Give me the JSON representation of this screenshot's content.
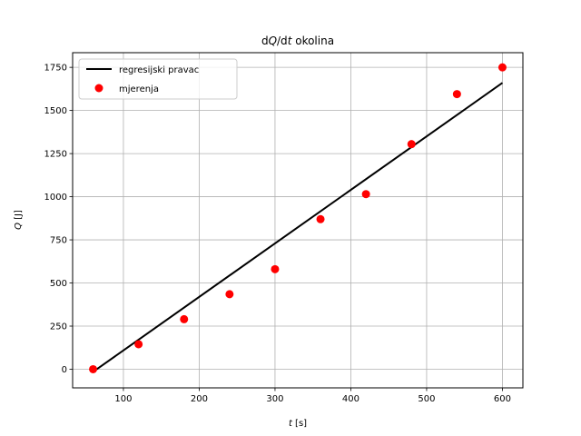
{
  "chart_data": {
    "type": "scatter",
    "title_prefix": "d",
    "title_var": "Q",
    "title_mid": "/d",
    "title_var2": "t",
    "title_suffix": " okolina",
    "xlabel_var": "t",
    "xlabel_unit": " [s]",
    "ylabel_var": "Q",
    "ylabel_unit": " [J]",
    "xlim": [
      33,
      627
    ],
    "ylim": [
      -108,
      1835
    ],
    "xticks": [
      100,
      200,
      300,
      400,
      500,
      600
    ],
    "yticks": [
      0,
      250,
      500,
      750,
      1000,
      1250,
      1500,
      1750
    ],
    "grid": true,
    "legend_position": "top-left",
    "series": [
      {
        "name": "regresijski pravac",
        "kind": "line",
        "color": "#000000",
        "x": [
          60,
          600
        ],
        "y": [
          -15,
          1660
        ]
      },
      {
        "name": "mjerenja",
        "kind": "scatter",
        "color": "#ff0000",
        "x": [
          60,
          120,
          180,
          240,
          300,
          360,
          420,
          480,
          540,
          600
        ],
        "y": [
          0,
          145,
          290,
          435,
          580,
          870,
          1015,
          1305,
          1595,
          1750
        ]
      }
    ]
  }
}
